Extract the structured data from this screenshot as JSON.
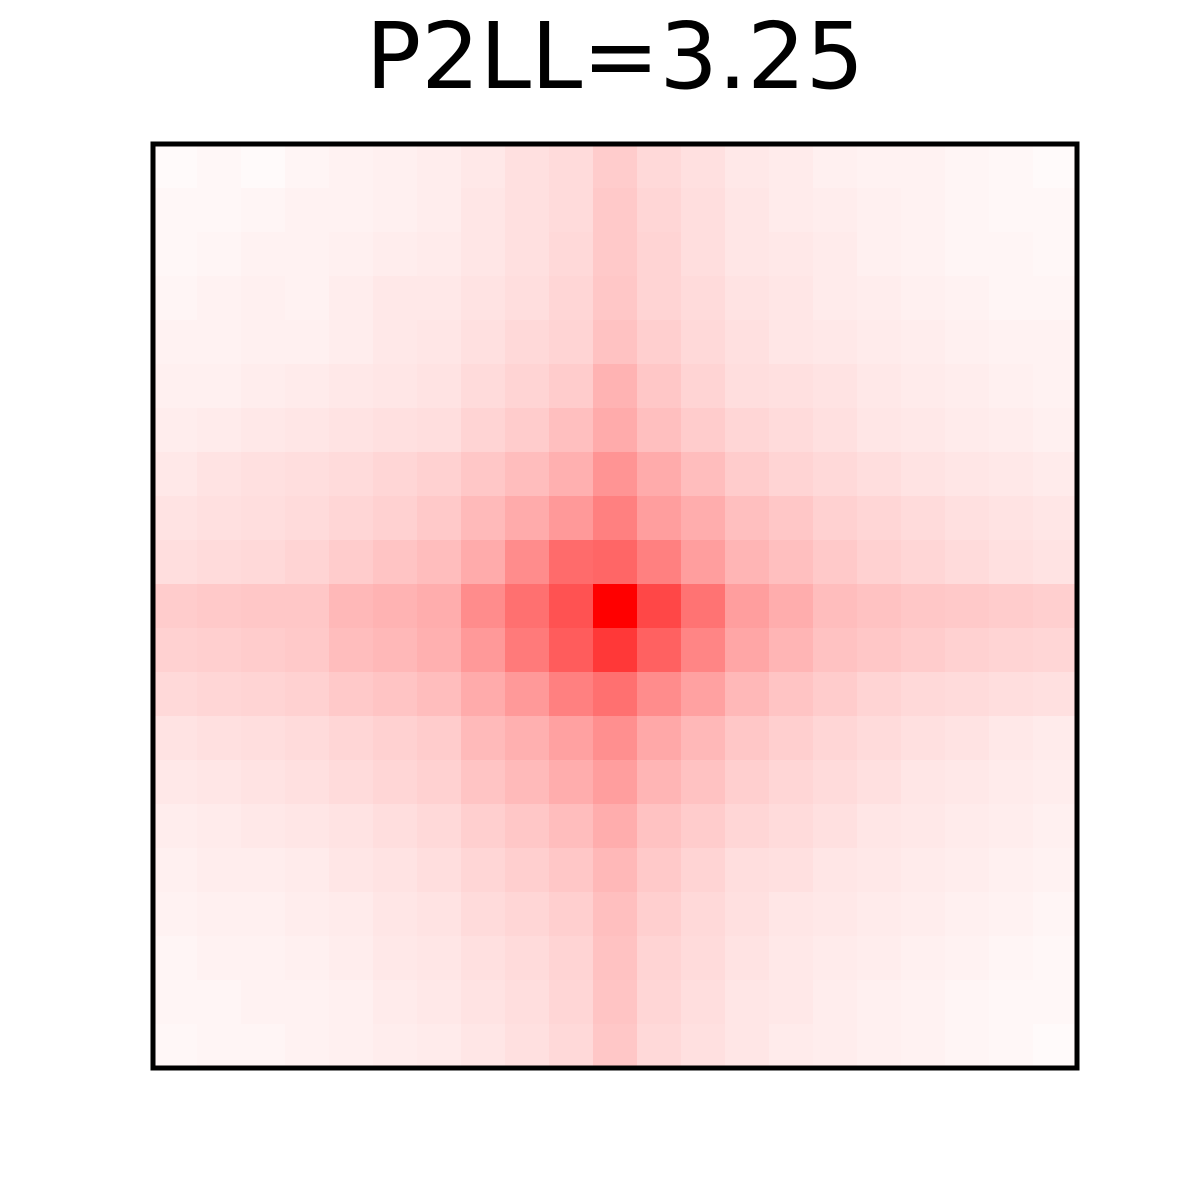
{
  "chart_data": {
    "type": "heatmap",
    "title": "P2LL=3.25",
    "xlabel": "",
    "ylabel": "",
    "colormap": {
      "low": "#ffffff",
      "high": "#ff0000"
    },
    "vmax": 1.0,
    "values": [
      [
        0.02,
        0.03,
        0.02,
        0.04,
        0.05,
        0.06,
        0.07,
        0.09,
        0.12,
        0.14,
        0.2,
        0.15,
        0.12,
        0.09,
        0.08,
        0.06,
        0.05,
        0.05,
        0.04,
        0.03,
        0.02
      ],
      [
        0.03,
        0.03,
        0.04,
        0.05,
        0.05,
        0.06,
        0.07,
        0.1,
        0.12,
        0.14,
        0.21,
        0.16,
        0.13,
        0.1,
        0.08,
        0.07,
        0.06,
        0.05,
        0.04,
        0.03,
        0.03
      ],
      [
        0.03,
        0.04,
        0.05,
        0.05,
        0.06,
        0.07,
        0.08,
        0.1,
        0.12,
        0.15,
        0.21,
        0.17,
        0.13,
        0.1,
        0.09,
        0.08,
        0.06,
        0.05,
        0.04,
        0.04,
        0.03
      ],
      [
        0.04,
        0.05,
        0.06,
        0.05,
        0.07,
        0.09,
        0.09,
        0.11,
        0.13,
        0.16,
        0.22,
        0.17,
        0.14,
        0.11,
        0.1,
        0.08,
        0.07,
        0.06,
        0.05,
        0.04,
        0.04
      ],
      [
        0.05,
        0.05,
        0.06,
        0.06,
        0.07,
        0.09,
        0.1,
        0.12,
        0.15,
        0.17,
        0.24,
        0.19,
        0.15,
        0.12,
        0.1,
        0.09,
        0.08,
        0.07,
        0.06,
        0.05,
        0.05
      ],
      [
        0.06,
        0.06,
        0.07,
        0.08,
        0.09,
        0.1,
        0.11,
        0.14,
        0.17,
        0.2,
        0.3,
        0.22,
        0.17,
        0.13,
        0.12,
        0.11,
        0.09,
        0.08,
        0.07,
        0.06,
        0.05
      ],
      [
        0.07,
        0.08,
        0.09,
        0.1,
        0.11,
        0.12,
        0.13,
        0.17,
        0.2,
        0.25,
        0.33,
        0.25,
        0.2,
        0.16,
        0.14,
        0.12,
        0.1,
        0.09,
        0.08,
        0.07,
        0.06
      ],
      [
        0.09,
        0.11,
        0.12,
        0.13,
        0.14,
        0.16,
        0.18,
        0.22,
        0.26,
        0.31,
        0.42,
        0.33,
        0.26,
        0.2,
        0.17,
        0.15,
        0.13,
        0.11,
        0.1,
        0.09,
        0.08
      ],
      [
        0.11,
        0.12,
        0.13,
        0.14,
        0.16,
        0.18,
        0.21,
        0.27,
        0.33,
        0.4,
        0.5,
        0.38,
        0.32,
        0.25,
        0.22,
        0.18,
        0.16,
        0.14,
        0.12,
        0.11,
        0.1
      ],
      [
        0.13,
        0.14,
        0.15,
        0.17,
        0.2,
        0.23,
        0.26,
        0.33,
        0.45,
        0.58,
        0.6,
        0.5,
        0.38,
        0.29,
        0.25,
        0.21,
        0.18,
        0.16,
        0.14,
        0.12,
        0.11
      ],
      [
        0.2,
        0.21,
        0.22,
        0.22,
        0.28,
        0.3,
        0.32,
        0.45,
        0.56,
        0.68,
        1.0,
        0.72,
        0.55,
        0.38,
        0.32,
        0.26,
        0.24,
        0.22,
        0.21,
        0.2,
        0.19
      ],
      [
        0.18,
        0.19,
        0.2,
        0.21,
        0.26,
        0.28,
        0.31,
        0.4,
        0.52,
        0.64,
        0.78,
        0.62,
        0.48,
        0.35,
        0.29,
        0.24,
        0.22,
        0.2,
        0.18,
        0.17,
        0.16
      ],
      [
        0.15,
        0.16,
        0.17,
        0.18,
        0.21,
        0.23,
        0.26,
        0.33,
        0.4,
        0.5,
        0.56,
        0.45,
        0.37,
        0.28,
        0.23,
        0.2,
        0.17,
        0.15,
        0.14,
        0.13,
        0.12
      ],
      [
        0.11,
        0.12,
        0.13,
        0.14,
        0.16,
        0.18,
        0.2,
        0.27,
        0.31,
        0.37,
        0.44,
        0.34,
        0.28,
        0.22,
        0.19,
        0.16,
        0.14,
        0.12,
        0.11,
        0.09,
        0.08
      ],
      [
        0.09,
        0.1,
        0.11,
        0.12,
        0.14,
        0.16,
        0.18,
        0.23,
        0.27,
        0.32,
        0.38,
        0.29,
        0.24,
        0.19,
        0.16,
        0.14,
        0.12,
        0.1,
        0.09,
        0.08,
        0.07
      ],
      [
        0.07,
        0.08,
        0.09,
        0.1,
        0.11,
        0.13,
        0.15,
        0.19,
        0.22,
        0.26,
        0.32,
        0.24,
        0.2,
        0.16,
        0.14,
        0.12,
        0.1,
        0.09,
        0.08,
        0.07,
        0.06
      ],
      [
        0.06,
        0.07,
        0.07,
        0.08,
        0.1,
        0.11,
        0.13,
        0.16,
        0.19,
        0.22,
        0.28,
        0.21,
        0.17,
        0.13,
        0.12,
        0.1,
        0.09,
        0.08,
        0.07,
        0.06,
        0.05
      ],
      [
        0.05,
        0.06,
        0.06,
        0.07,
        0.08,
        0.1,
        0.11,
        0.14,
        0.16,
        0.19,
        0.25,
        0.19,
        0.15,
        0.12,
        0.1,
        0.09,
        0.08,
        0.07,
        0.06,
        0.05,
        0.04
      ],
      [
        0.04,
        0.05,
        0.05,
        0.06,
        0.07,
        0.09,
        0.1,
        0.12,
        0.14,
        0.17,
        0.24,
        0.17,
        0.14,
        0.11,
        0.09,
        0.08,
        0.07,
        0.06,
        0.05,
        0.04,
        0.03
      ],
      [
        0.04,
        0.04,
        0.05,
        0.05,
        0.06,
        0.08,
        0.09,
        0.11,
        0.13,
        0.16,
        0.23,
        0.16,
        0.13,
        0.1,
        0.09,
        0.07,
        0.06,
        0.05,
        0.04,
        0.03,
        0.03
      ],
      [
        0.03,
        0.04,
        0.04,
        0.05,
        0.06,
        0.07,
        0.08,
        0.1,
        0.12,
        0.15,
        0.22,
        0.15,
        0.12,
        0.1,
        0.08,
        0.07,
        0.06,
        0.05,
        0.04,
        0.03,
        0.02
      ]
    ]
  }
}
